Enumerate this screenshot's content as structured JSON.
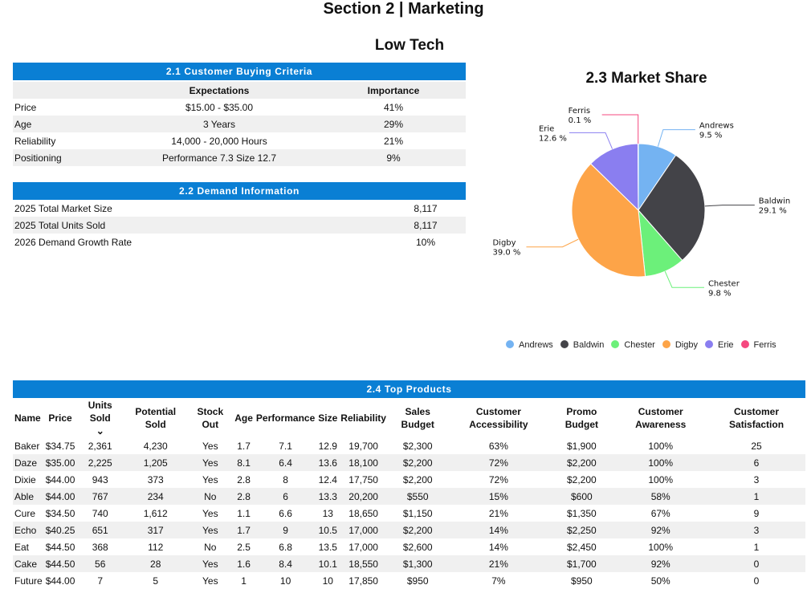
{
  "title": "Section 2 | Marketing",
  "subtitle": "Low Tech",
  "criteria": {
    "title": "2.1 Customer Buying Criteria",
    "headers": [
      "",
      "Expectations",
      "Importance"
    ],
    "rows": [
      [
        "Price",
        "$15.00 - $35.00",
        "41%"
      ],
      [
        "Age",
        "3 Years",
        "29%"
      ],
      [
        "Reliability",
        "14,000 - 20,000 Hours",
        "21%"
      ],
      [
        "Positioning",
        "Performance 7.3 Size 12.7",
        "9%"
      ]
    ]
  },
  "demand": {
    "title": "2.2 Demand Information",
    "rows": [
      [
        "2025 Total Market Size",
        "8,117"
      ],
      [
        "2025 Total Units Sold",
        "8,117"
      ],
      [
        "2026 Demand Growth Rate",
        "10%"
      ]
    ]
  },
  "chart_data": {
    "type": "pie",
    "title": "2.3 Market Share",
    "legend": "bottom",
    "categories": [
      "Andrews",
      "Baldwin",
      "Chester",
      "Digby",
      "Erie",
      "Ferris"
    ],
    "values": [
      9.5,
      29.1,
      9.8,
      39.0,
      12.6,
      0.1
    ],
    "labels": [
      "9.5 %",
      "29.1 %",
      "9.8 %",
      "39.0 %",
      "12.6 %",
      "0.1 %"
    ],
    "colors": [
      "#74b3f2",
      "#434348",
      "#6cf07a",
      "#fda448",
      "#8a7ef0",
      "#f5487f"
    ]
  },
  "products": {
    "title": "2.4 Top Products",
    "sort_icon": "chevron-down-icon",
    "headers": [
      "Name",
      "Price",
      "Units Sold",
      "Potential Sold",
      "Stock Out",
      "Age",
      "Performance",
      "Size",
      "Reliability",
      "Sales Budget",
      "Customer Accessibility",
      "Promo Budget",
      "Customer Awareness",
      "Customer Satisfaction"
    ],
    "rows": [
      [
        "Baker",
        "$34.75",
        "2,361",
        "4,230",
        "Yes",
        "1.7",
        "7.1",
        "12.9",
        "19,700",
        "$2,300",
        "63%",
        "$1,900",
        "100%",
        "25"
      ],
      [
        "Daze",
        "$35.00",
        "2,225",
        "1,205",
        "Yes",
        "8.1",
        "6.4",
        "13.6",
        "18,100",
        "$2,200",
        "72%",
        "$2,200",
        "100%",
        "6"
      ],
      [
        "Dixie",
        "$44.00",
        "943",
        "373",
        "Yes",
        "2.8",
        "8",
        "12.4",
        "17,750",
        "$2,200",
        "72%",
        "$2,200",
        "100%",
        "3"
      ],
      [
        "Able",
        "$44.00",
        "767",
        "234",
        "No",
        "2.8",
        "6",
        "13.3",
        "20,200",
        "$550",
        "15%",
        "$600",
        "58%",
        "1"
      ],
      [
        "Cure",
        "$34.50",
        "740",
        "1,612",
        "Yes",
        "1.1",
        "6.6",
        "13",
        "18,650",
        "$1,150",
        "21%",
        "$1,350",
        "67%",
        "9"
      ],
      [
        "Echo",
        "$40.25",
        "651",
        "317",
        "Yes",
        "1.7",
        "9",
        "10.5",
        "17,000",
        "$2,200",
        "14%",
        "$2,250",
        "92%",
        "3"
      ],
      [
        "Eat",
        "$44.50",
        "368",
        "112",
        "No",
        "2.5",
        "6.8",
        "13.5",
        "17,000",
        "$2,600",
        "14%",
        "$2,450",
        "100%",
        "1"
      ],
      [
        "Cake",
        "$44.50",
        "56",
        "28",
        "Yes",
        "1.6",
        "8.4",
        "10.1",
        "18,550",
        "$1,300",
        "21%",
        "$1,700",
        "92%",
        "0"
      ],
      [
        "Future",
        "$44.00",
        "7",
        "5",
        "Yes",
        "1",
        "10",
        "10",
        "17,850",
        "$950",
        "7%",
        "$950",
        "50%",
        "0"
      ]
    ]
  }
}
